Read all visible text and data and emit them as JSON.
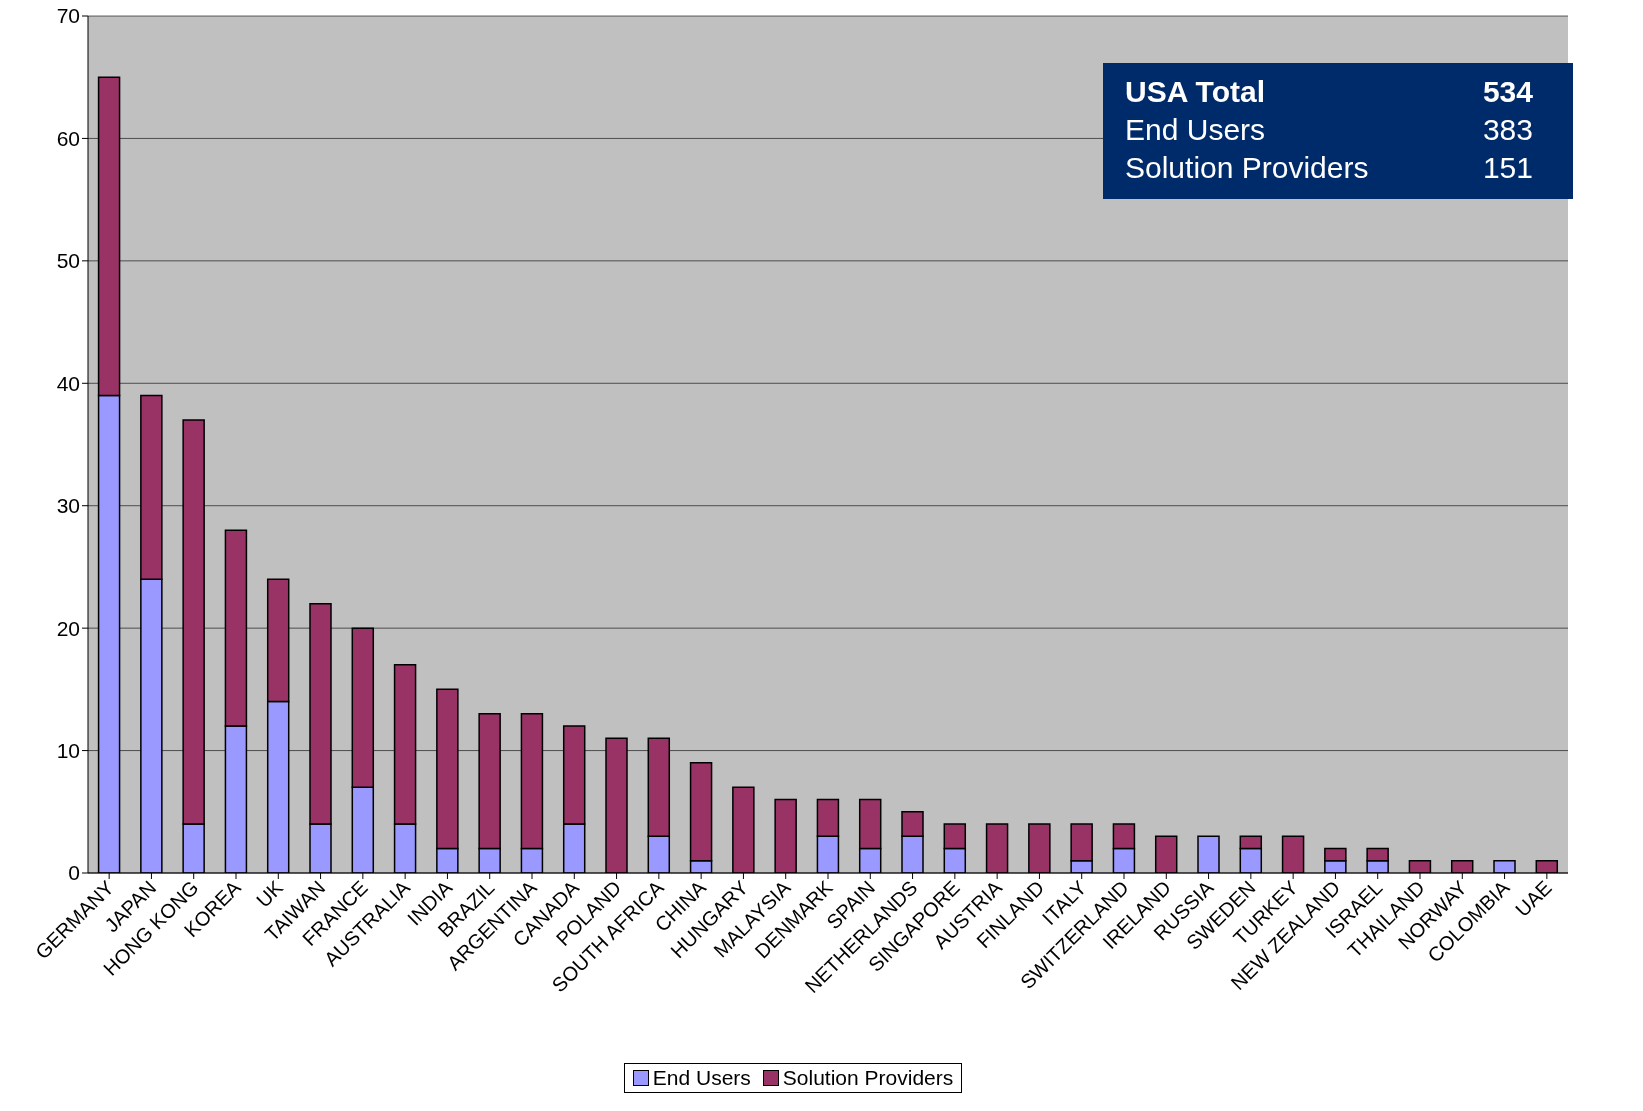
{
  "chart_data": {
    "type": "bar",
    "stacked": true,
    "categories": [
      "GERMANY",
      "JAPAN",
      "HONG KONG",
      "KOREA",
      "UK",
      "TAIWAN",
      "FRANCE",
      "AUSTRALIA",
      "INDIA",
      "BRAZIL",
      "ARGENTINA",
      "CANADA",
      "POLAND",
      "SOUTH AFRICA",
      "CHINA",
      "HUNGARY",
      "MALAYSIA",
      "DENMARK",
      "SPAIN",
      "NETHERLANDS",
      "SINGAPORE",
      "AUSTRIA",
      "FINLAND",
      "ITALY",
      "SWITZERLAND",
      "IRELAND",
      "RUSSIA",
      "SWEDEN",
      "TURKEY",
      "NEW ZEALAND",
      "ISRAEL",
      "THAILAND",
      "NORWAY",
      "COLOMBIA",
      "UAE"
    ],
    "series": [
      {
        "name": "End Users",
        "color": "#9999ff",
        "values": [
          39,
          24,
          4,
          12,
          14,
          4,
          7,
          4,
          2,
          2,
          2,
          4,
          0,
          3,
          1,
          0,
          0,
          3,
          2,
          3,
          2,
          0,
          0,
          1,
          2,
          0,
          3,
          2,
          0,
          1,
          1,
          0,
          0,
          1,
          0
        ]
      },
      {
        "name": "Solution Providers",
        "color": "#993366",
        "values": [
          26,
          15,
          33,
          16,
          10,
          18,
          13,
          13,
          13,
          11,
          11,
          8,
          11,
          8,
          8,
          7,
          6,
          3,
          4,
          2,
          2,
          4,
          4,
          3,
          2,
          3,
          0,
          1,
          3,
          1,
          1,
          1,
          1,
          0,
          1
        ]
      }
    ],
    "ylim": [
      0,
      70
    ],
    "yticks": [
      0,
      10,
      20,
      30,
      40,
      50,
      60,
      70
    ],
    "grid": "y",
    "legend": "bottom",
    "annotations": [
      "USA Total",
      "534",
      "End Users",
      "383",
      "Solution Providers",
      "151"
    ]
  }
}
